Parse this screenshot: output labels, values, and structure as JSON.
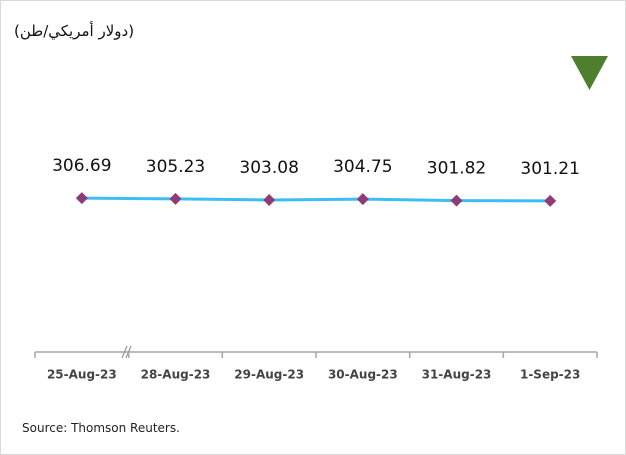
{
  "chart_data": {
    "type": "line",
    "title": "(دولار أمريكي/طن)",
    "source": "Source: Thomson Reuters.",
    "categories": [
      "25-Aug-23",
      "28-Aug-23",
      "29-Aug-23",
      "30-Aug-23",
      "31-Aug-23",
      "1-Sep-23"
    ],
    "series": [
      {
        "name": null,
        "color": "#3cbff0",
        "marker_color": "#8e3b78",
        "values": [
          306.69,
          305.23,
          303.08,
          304.75,
          301.82,
          301.21
        ]
      }
    ],
    "ylim": [
      0,
      600
    ]
  }
}
